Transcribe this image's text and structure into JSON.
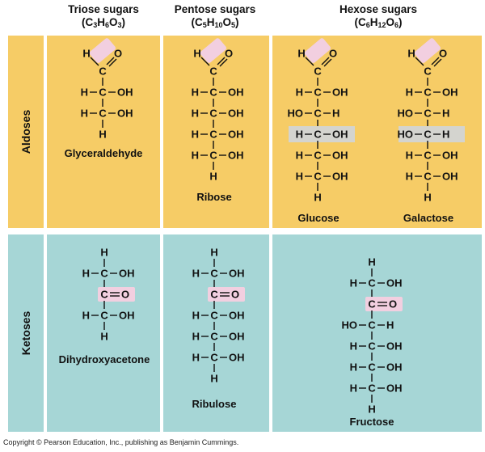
{
  "headers": {
    "triose": {
      "line1": "Triose sugars",
      "formula": [
        [
          "(C",
          "n"
        ],
        [
          "3",
          "s"
        ],
        [
          "H",
          "n"
        ],
        [
          "6",
          "s"
        ],
        [
          "O",
          "n"
        ],
        [
          "3",
          "s"
        ],
        [
          ")",
          "n"
        ]
      ]
    },
    "pentose": {
      "line1": "Pentose sugars",
      "formula": [
        [
          "(C",
          "n"
        ],
        [
          "5",
          "s"
        ],
        [
          "H",
          "n"
        ],
        [
          "10",
          "s"
        ],
        [
          "O",
          "n"
        ],
        [
          "5",
          "s"
        ],
        [
          ")",
          "n"
        ]
      ]
    },
    "hexose": {
      "line1": "Hexose sugars",
      "formula": [
        [
          "(C",
          "n"
        ],
        [
          "6",
          "s"
        ],
        [
          "H",
          "n"
        ],
        [
          "12",
          "s"
        ],
        [
          "O",
          "n"
        ],
        [
          "6",
          "s"
        ],
        [
          ")",
          "n"
        ]
      ]
    }
  },
  "row_labels": {
    "aldoses": "Aldoses",
    "ketoses": "Ketoses"
  },
  "colors": {
    "aldose_panel": "#f6cc66",
    "ketose_panel": "#a6d6d6",
    "carbonyl_highlight": "#f2cfe0",
    "diff_highlight": "#d4d4cf"
  },
  "sugars": {
    "glyceraldehyde": {
      "name": "Glyceraldehyde",
      "top": "aldehyde",
      "rows": [
        {
          "left": "H",
          "right": "OH"
        },
        {
          "left": "H",
          "right": "OH"
        }
      ],
      "bottom": "H"
    },
    "ribose": {
      "name": "Ribose",
      "top": "aldehyde",
      "rows": [
        {
          "left": "H",
          "right": "OH"
        },
        {
          "left": "H",
          "right": "OH"
        },
        {
          "left": "H",
          "right": "OH"
        },
        {
          "left": "H",
          "right": "OH"
        }
      ],
      "bottom": "H"
    },
    "glucose": {
      "name": "Glucose",
      "top": "aldehyde",
      "rows": [
        {
          "left": "H",
          "right": "OH"
        },
        {
          "left": "HO",
          "right": "H"
        },
        {
          "left": "H",
          "right": "OH",
          "highlight": true
        },
        {
          "left": "H",
          "right": "OH"
        },
        {
          "left": "H",
          "right": "OH"
        }
      ],
      "bottom": "H"
    },
    "galactose": {
      "name": "Galactose",
      "top": "aldehyde",
      "rows": [
        {
          "left": "H",
          "right": "OH"
        },
        {
          "left": "HO",
          "right": "H"
        },
        {
          "left": "HO",
          "right": "H",
          "highlight": true
        },
        {
          "left": "H",
          "right": "OH"
        },
        {
          "left": "H",
          "right": "OH"
        }
      ],
      "bottom": "H"
    },
    "dihydroxyacetone": {
      "name": "Dihydroxyacetone",
      "top": "H",
      "rows": [
        {
          "left": "H",
          "right": "OH"
        },
        {
          "carbonyl": true
        },
        {
          "left": "H",
          "right": "OH"
        }
      ],
      "bottom": "H"
    },
    "ribulose": {
      "name": "Ribulose",
      "top": "H",
      "rows": [
        {
          "left": "H",
          "right": "OH"
        },
        {
          "carbonyl": true
        },
        {
          "left": "H",
          "right": "OH"
        },
        {
          "left": "H",
          "right": "OH"
        },
        {
          "left": "H",
          "right": "OH"
        }
      ],
      "bottom": "H"
    },
    "fructose": {
      "name": "Fructose",
      "top": "H",
      "rows": [
        {
          "left": "H",
          "right": "OH"
        },
        {
          "carbonyl": true
        },
        {
          "left": "HO",
          "right": "H"
        },
        {
          "left": "H",
          "right": "OH"
        },
        {
          "left": "H",
          "right": "OH"
        },
        {
          "left": "H",
          "right": "OH"
        }
      ],
      "bottom": "H"
    }
  },
  "footer": "Copyright © Pearson Education, Inc., publishing as Benjamin Cummings."
}
